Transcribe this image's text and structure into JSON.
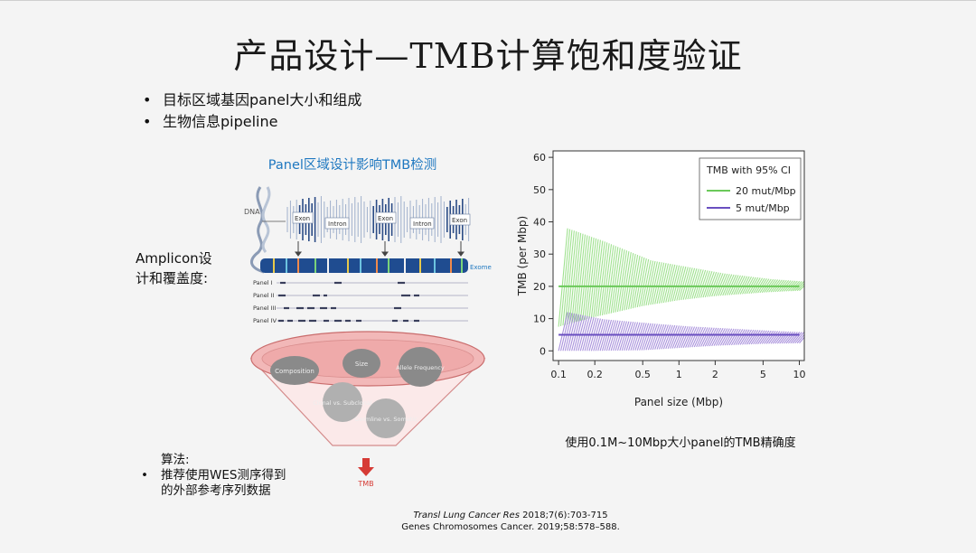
{
  "slide": {
    "title": "产品设计—TMB计算饱和度验证",
    "bullets": [
      "目标区域基因panel大小和组成",
      "生物信息pipeline"
    ]
  },
  "left_figure": {
    "caption": "Panel区域设计影响TMB检测",
    "dna_label": "DNA",
    "gene_labels": [
      "Exon",
      "Intron",
      "Exon",
      "Intron",
      "Exon"
    ],
    "exome_label": "Exome",
    "panel_labels": [
      "Panel I",
      "Panel II",
      "Panel III",
      "Panel IV"
    ],
    "funnel_bubbles": [
      "Composition",
      "Size",
      "Allele Frequency",
      "Clonal vs. Subclonal",
      "Germline vs. Somatic"
    ],
    "arrow_label": "TMB"
  },
  "amplicon_label": [
    "Amplicon设",
    "计和覆盖度:"
  ],
  "algorithm": {
    "heading": "算法:",
    "lines": [
      "推荐使用WES测序得到",
      "的外部参考序列数据"
    ]
  },
  "chart_data": {
    "type": "line",
    "title": "",
    "xlabel": "Panel size (Mbp)",
    "ylabel": "TMB (per Mbp)",
    "x_scale": "log",
    "xlim": [
      0.09,
      11
    ],
    "ylim": [
      -3,
      62
    ],
    "x_ticks": [
      0.1,
      0.2,
      0.5,
      1,
      2,
      5,
      10
    ],
    "x_tick_labels": [
      "0.1",
      "0.2",
      "0.5",
      "1",
      "2",
      "5",
      "10"
    ],
    "y_ticks": [
      0,
      10,
      20,
      30,
      40,
      50,
      60
    ],
    "legend": {
      "title": "TMB with 95% CI",
      "position": "top-right"
    },
    "series": [
      {
        "name": "20 mut/Mbp",
        "color": "#8fdc7c",
        "line_color": "#6bc95a",
        "x": [
          0.1,
          0.2,
          0.5,
          1,
          2,
          5,
          10
        ],
        "values": [
          20,
          20,
          20,
          20,
          20,
          20,
          20
        ],
        "lower": [
          7.5,
          10.5,
          13.9,
          15.7,
          17.0,
          18.1,
          18.7
        ],
        "upper": [
          38,
          34,
          28,
          26,
          24,
          22.2,
          21.4
        ]
      },
      {
        "name": "5 mut/Mbp",
        "color": "#9b7fd6",
        "line_color": "#6a4fc0",
        "x": [
          0.1,
          0.2,
          0.5,
          1,
          2,
          5,
          10
        ],
        "values": [
          5,
          5,
          5,
          5,
          5,
          5,
          5
        ],
        "lower": [
          0,
          0,
          0.2,
          0.9,
          1.6,
          2.2,
          2.4
        ],
        "upper": [
          12,
          9.8,
          8.5,
          7.6,
          7.0,
          6.2,
          5.7
        ]
      }
    ]
  },
  "chart_caption": "使用0.1M~10Mbp大小panel的TMB精确度",
  "references": {
    "ref1_journal": "Transl Lung Cancer Res",
    "ref1_rest": " 2018;7(6):703-715",
    "ref2": "Genes Chromosomes Cancer. 2019;58:578–588."
  }
}
